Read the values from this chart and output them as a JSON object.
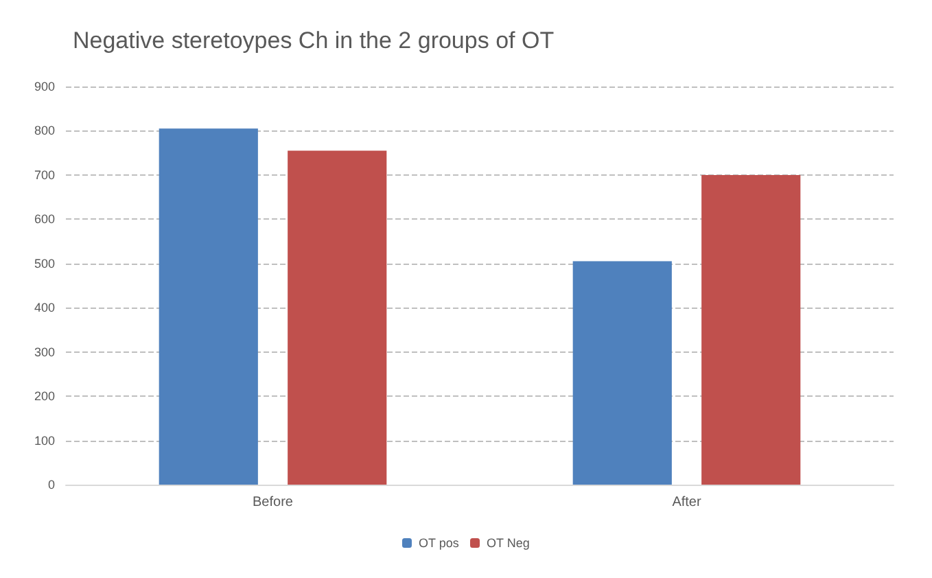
{
  "chart_data": {
    "type": "bar",
    "title": "Negative steretoypes Ch in the 2 groups of OT",
    "categories": [
      "Before",
      "After"
    ],
    "series": [
      {
        "name": "OT pos",
        "color": "#4f81bd",
        "values": [
          805,
          505
        ]
      },
      {
        "name": "OT Neg",
        "color": "#c0504d",
        "values": [
          755,
          700
        ]
      }
    ],
    "ylim": [
      0,
      900
    ],
    "yticks": [
      0,
      100,
      200,
      300,
      400,
      500,
      600,
      700,
      800,
      900
    ],
    "grid": "y",
    "legend": "bottom"
  }
}
